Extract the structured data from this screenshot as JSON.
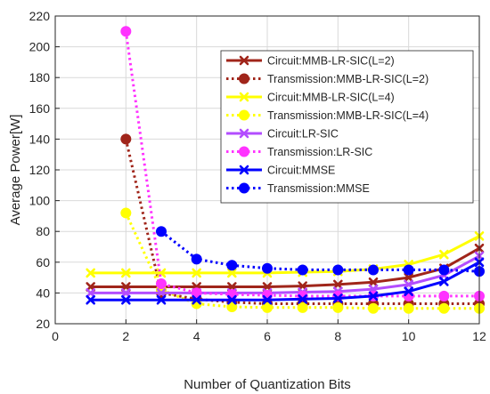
{
  "chart_data": {
    "type": "line",
    "xlabel": "Number of Quantization Bits",
    "ylabel": "Average Power[W]",
    "xlim": [
      0,
      12
    ],
    "ylim": [
      20,
      220
    ],
    "xticks": [
      0,
      2,
      4,
      6,
      8,
      10,
      12
    ],
    "yticks": [
      20,
      40,
      60,
      80,
      100,
      120,
      140,
      160,
      180,
      200,
      220
    ],
    "grid": true,
    "legend_position": "top-right",
    "series": [
      {
        "name": "Circuit:MMB-LR-SIC(L=2)",
        "color": "#a0251a",
        "style": "solid",
        "marker": "x",
        "x": [
          1,
          2,
          3,
          4,
          5,
          6,
          7,
          8,
          9,
          10,
          11,
          12
        ],
        "values": [
          44,
          44,
          44,
          44,
          44,
          44,
          44.5,
          45.5,
          47,
          50,
          56,
          69
        ]
      },
      {
        "name": "Transmission:MMB-LR-SIC(L=2)",
        "color": "#a0251a",
        "style": "dotted",
        "marker": "circle",
        "x": [
          2,
          3,
          4,
          5,
          6,
          7,
          8,
          9,
          10,
          11,
          12
        ],
        "values": [
          140,
          40,
          36,
          34,
          33,
          33,
          33,
          33,
          33,
          33,
          33
        ]
      },
      {
        "name": "Circuit:MMB-LR-SIC(L=4)",
        "color": "#ffff00",
        "style": "solid",
        "marker": "x",
        "x": [
          1,
          2,
          3,
          4,
          5,
          6,
          7,
          8,
          9,
          10,
          11,
          12
        ],
        "values": [
          53,
          53,
          53,
          53,
          53,
          53,
          53.5,
          54,
          55.5,
          58.5,
          65,
          77
        ]
      },
      {
        "name": "Transmission:MMB-LR-SIC(L=4)",
        "color": "#ffff00",
        "style": "dotted",
        "marker": "circle",
        "x": [
          2,
          3,
          4,
          5,
          6,
          7,
          8,
          9,
          10,
          11,
          12
        ],
        "values": [
          92,
          42,
          33,
          31,
          30.5,
          30.5,
          30.5,
          30,
          30,
          30,
          30
        ]
      },
      {
        "name": "Circuit:LR-SIC",
        "color": "#b34dff",
        "style": "solid",
        "marker": "x",
        "x": [
          1,
          2,
          3,
          4,
          5,
          6,
          7,
          8,
          9,
          10,
          11,
          12
        ],
        "values": [
          40,
          40,
          40,
          40,
          40,
          40,
          40.5,
          41,
          42.5,
          45.5,
          51.5,
          64
        ]
      },
      {
        "name": "Transmission:LR-SIC",
        "color": "#ff33ff",
        "style": "dotted",
        "marker": "circle",
        "x": [
          2,
          3,
          4,
          5,
          6,
          7,
          8,
          9,
          10,
          11,
          12
        ],
        "values": [
          210,
          46,
          40,
          39,
          38.5,
          38,
          38,
          38,
          38,
          38,
          38
        ]
      },
      {
        "name": "Circuit:MMSE",
        "color": "#0000ff",
        "style": "solid",
        "marker": "x",
        "x": [
          1,
          2,
          3,
          4,
          5,
          6,
          7,
          8,
          9,
          10,
          11,
          12
        ],
        "values": [
          35.5,
          35.5,
          35.5,
          35.5,
          35.5,
          35.5,
          36,
          36.5,
          38,
          41,
          47.5,
          60
        ]
      },
      {
        "name": "Transmission:MMSE",
        "color": "#0000ff",
        "style": "dotted",
        "marker": "circle",
        "x": [
          3,
          4,
          5,
          6,
          7,
          8,
          9,
          10,
          11,
          12
        ],
        "values": [
          80,
          62,
          58,
          56,
          55,
          55,
          55,
          55,
          55,
          54
        ]
      }
    ]
  }
}
